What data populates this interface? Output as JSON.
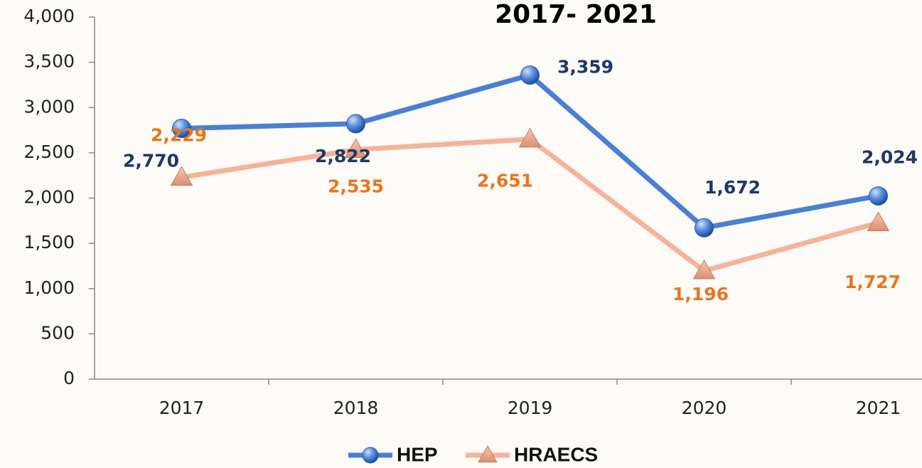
{
  "chart_data": {
    "type": "line",
    "title": "2017- 2021",
    "categories": [
      "2017",
      "2018",
      "2019",
      "2020",
      "2021"
    ],
    "series": [
      {
        "name": "HEP",
        "color": "#4a7fd4",
        "label_color": "#1f3864",
        "marker": "circle",
        "values": [
          2770,
          2822,
          3359,
          1672,
          2024
        ],
        "value_labels": [
          "2,770",
          "2,822",
          "3,359",
          "1,672",
          "2,024"
        ]
      },
      {
        "name": "HRAECS",
        "color": "#f4b39b",
        "label_color": "#e8761e",
        "marker": "triangle",
        "values": [
          2229,
          2535,
          2651,
          1196,
          1727
        ],
        "value_labels": [
          "2,229",
          "2,535",
          "2,651",
          "1,196",
          "1,727"
        ]
      }
    ],
    "ylim": [
      0,
      4000
    ],
    "yticks": [
      0,
      500,
      {
        "value": 1000,
        "label": "1,000"
      },
      {
        "value": 1500,
        "label": "1,500"
      },
      {
        "value": 2000,
        "label": "2,000"
      },
      {
        "value": 2500,
        "label": "2,500"
      },
      {
        "value": 3000,
        "label": "3,000"
      },
      {
        "value": 3500,
        "label": "3,500"
      },
      {
        "value": 4000,
        "label": "4,000"
      }
    ],
    "grid": false,
    "legend": "bottom"
  }
}
